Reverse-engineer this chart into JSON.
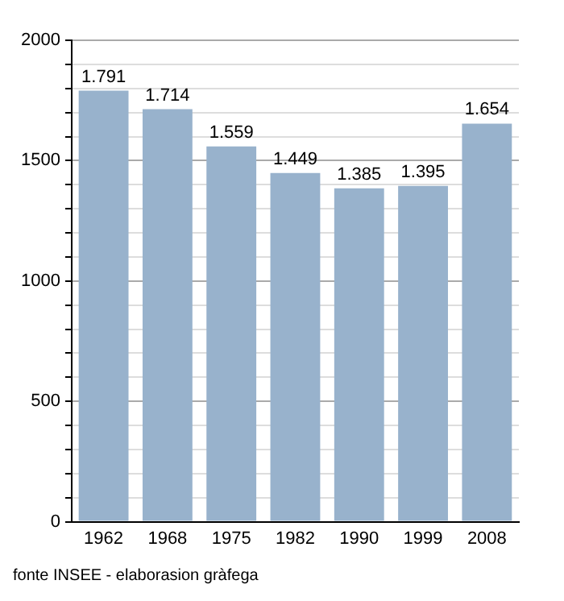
{
  "chart_data": {
    "type": "bar",
    "categories": [
      "1962",
      "1968",
      "1975",
      "1982",
      "1990",
      "1999",
      "2008"
    ],
    "values": [
      1791,
      1714,
      1559,
      1449,
      1385,
      1395,
      1654
    ],
    "value_labels": [
      "1.791",
      "1.714",
      "1.559",
      "1.449",
      "1.385",
      "1.395",
      "1.654"
    ],
    "color": "#98b2cc",
    "ylim": [
      0,
      2000
    ],
    "yticks": [
      0,
      {
        "value": 100,
        "label": null
      },
      {
        "value": 200,
        "label": null
      },
      {
        "value": 300,
        "label": null
      },
      {
        "value": 400,
        "label": null
      },
      500,
      {
        "value": 600,
        "label": null
      },
      {
        "value": 700,
        "label": null
      },
      {
        "value": 800,
        "label": null
      },
      {
        "value": 900,
        "label": null
      },
      1000,
      {
        "value": 1100,
        "label": null
      },
      {
        "value": 1200,
        "label": null
      },
      {
        "value": 1300,
        "label": null
      },
      {
        "value": 1400,
        "label": null
      },
      1500,
      {
        "value": 1600,
        "label": null
      },
      {
        "value": 1700,
        "label": null
      },
      {
        "value": 1800,
        "label": null
      },
      {
        "value": 1900,
        "label": null
      },
      2000
    ],
    "grid": "y",
    "annotations": [
      "fonte INSEE - elaborasion gràfega"
    ]
  }
}
